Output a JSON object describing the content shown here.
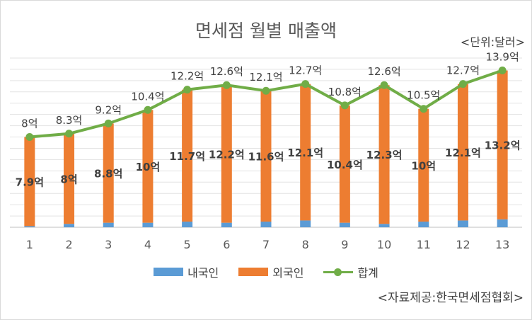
{
  "chart_data": {
    "type": "bar",
    "title": "면세점 월별 매출액",
    "unit_note": "<단위:달러>",
    "source_note": "<자료제공:한국면세점협회>",
    "categories": [
      "1",
      "2",
      "3",
      "4",
      "5",
      "6",
      "7",
      "8",
      "9",
      "10",
      "11",
      "12",
      "13"
    ],
    "ylim": [
      0,
      15
    ],
    "grid": true,
    "legend_position": "bottom",
    "series": [
      {
        "name": "내국인",
        "kind": "stacked-bar",
        "color": "#5b9bd5",
        "values": [
          0.1,
          0.3,
          0.4,
          0.4,
          0.5,
          0.4,
          0.5,
          0.6,
          0.4,
          0.3,
          0.5,
          0.6,
          0.7
        ]
      },
      {
        "name": "외국인",
        "kind": "stacked-bar",
        "color": "#ed7d31",
        "values": [
          7.9,
          8,
          8.8,
          10,
          11.7,
          12.2,
          11.6,
          12.1,
          10.4,
          12.3,
          10,
          12.1,
          13.2
        ],
        "labels": [
          "7.9억",
          "8억",
          "8.8억",
          "10억",
          "11.7억",
          "12.2억",
          "11.6억",
          "12.1억",
          "10.4억",
          "12.3억",
          "10억",
          "12.1억",
          "13.2억"
        ]
      },
      {
        "name": "합계",
        "kind": "line",
        "color": "#70ad47",
        "values": [
          8,
          8.3,
          9.2,
          10.4,
          12.2,
          12.6,
          12.1,
          12.7,
          10.8,
          12.6,
          10.5,
          12.7,
          13.9
        ],
        "labels": [
          "8억",
          "8.3억",
          "9.2억",
          "10.4억",
          "12.2억",
          "12.6억",
          "12.1억",
          "12.7억",
          "10.8억",
          "12.6억",
          "10.5억",
          "12.7억",
          "13.9억"
        ]
      }
    ]
  }
}
